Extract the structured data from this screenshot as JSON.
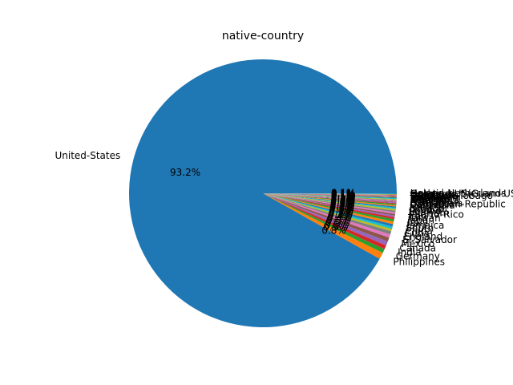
{
  "chart_data": {
    "type": "pie",
    "title": "native-country",
    "colors": [
      "#1f77b4",
      "#ff7f0e",
      "#2ca02c",
      "#d62728",
      "#9467bd",
      "#8c564b",
      "#e377c2",
      "#7f7f7f",
      "#bcbd22",
      "#17becf"
    ],
    "labels": [
      "United-States",
      "Philippines",
      "Germany",
      "India",
      "Canada",
      "Mexico",
      "El-Salvador",
      "England",
      "Cuba",
      "China",
      "South",
      "Jamaica",
      "Italy",
      "Japan",
      "Taiwan",
      "Iran",
      "Puerto-Rico",
      "Vietnam",
      "Poland",
      "Greece",
      "Ecuador",
      "Haiti",
      "Columbia",
      "Dominican-Republic",
      "Guatemala",
      "Portugal",
      "France",
      "Nicaragua",
      "Peru",
      "Thailand",
      "Ireland",
      "Yugoslavia",
      "Scotland",
      "Hungary",
      "Trinadad&Tobago",
      "Cambodia",
      "Laos",
      "Hong",
      "Honduras",
      "Outlying-US(Guam-USVI-etc)",
      "Holand-Netherlands"
    ],
    "values": [
      93.2,
      0.8,
      0.5,
      0.5,
      0.5,
      0.5,
      0.4,
      0.4,
      0.3,
      0.3,
      0.3,
      0.3,
      0.3,
      0.25,
      0.2,
      0.2,
      0.2,
      0.2,
      0.2,
      0.15,
      0.15,
      0.15,
      0.15,
      0.1,
      0.1,
      0.1,
      0.1,
      0.1,
      0.1,
      0.1,
      0.1,
      0.05,
      0.05,
      0.05,
      0.05,
      0.05,
      0.05,
      0.05,
      0.05,
      0.05,
      0.05
    ],
    "percent_labels": [
      "93.2%",
      "0.8%",
      "0.5%",
      "0.5%",
      "0.5%",
      "0.5%",
      "0.4%",
      "0.4%",
      "0.3%",
      "0.3%",
      "0.3%",
      "0.3%",
      "0.3%",
      "0.3%",
      "0.2%",
      "0.2%",
      "0.2%",
      "0.2%",
      "0.2%",
      "0.1%",
      "0.1%",
      "0.1%",
      "0.1%",
      "0.1%",
      "0.1%",
      "0.1%",
      "0.1%",
      "0.1%",
      "0.1%",
      "0.1%",
      "0.1%",
      "0.1%",
      "0.1%",
      "0.1%",
      "0.1%",
      "0.1%",
      "0.1%",
      "0.1%",
      "0.1%",
      "0.1%",
      "0.1%"
    ]
  }
}
